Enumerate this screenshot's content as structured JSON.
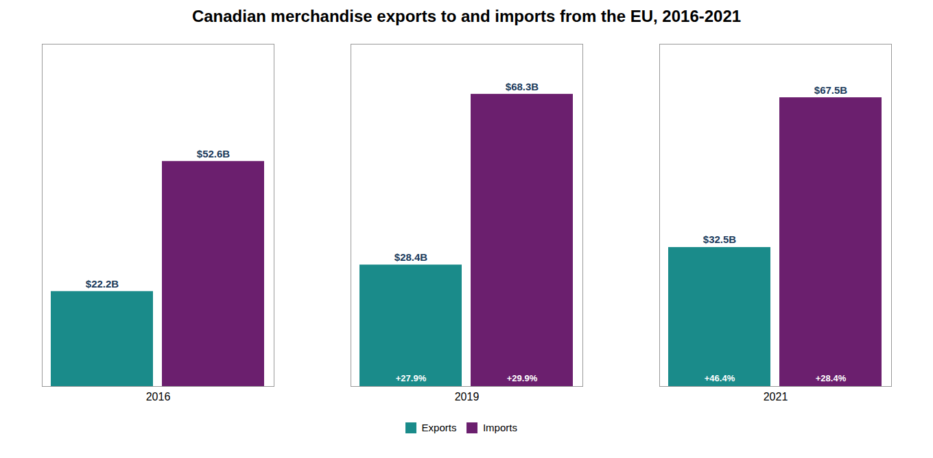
{
  "chart_data": {
    "type": "bar",
    "title": "Canadian merchandise exports to and imports from the EU, 2016-2021",
    "categories": [
      "2016",
      "2019",
      "2021"
    ],
    "series": [
      {
        "name": "Exports",
        "color": "#1a8b8a",
        "values": [
          22.2,
          28.4,
          32.5
        ],
        "value_labels": [
          "$22.2B",
          "$28.4B",
          "$32.5B"
        ],
        "change_labels": [
          null,
          "+27.9%",
          "+46.4%"
        ]
      },
      {
        "name": "Imports",
        "color": "#6b1f6e",
        "values": [
          52.6,
          68.3,
          67.5
        ],
        "value_labels": [
          "$52.6B",
          "$68.3B",
          "$67.5B"
        ],
        "change_labels": [
          null,
          "+29.9%",
          "+28.4%"
        ]
      }
    ],
    "ylim": [
      0,
      80
    ],
    "grid": false,
    "legend": "bottom",
    "data_labels": true,
    "tick_labels": "x"
  }
}
